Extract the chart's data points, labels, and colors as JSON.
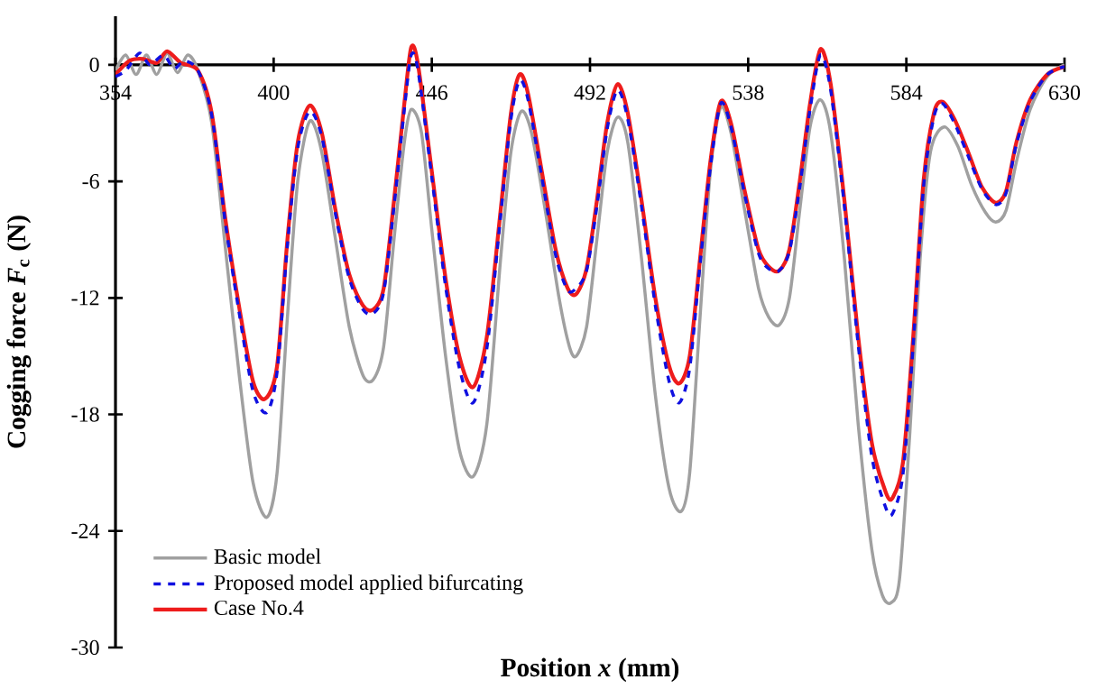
{
  "chart_data": {
    "type": "line",
    "xlabel": "Position *x* (mm)",
    "ylabel": "Cogging force *F*$_{c}$ (N)",
    "xlim": [
      354,
      630
    ],
    "xticks": [
      354,
      400,
      446,
      492,
      538,
      584,
      630
    ],
    "ylim": [
      -30,
      2.5
    ],
    "yticks": [
      -30,
      -24,
      -18,
      -12,
      -6,
      0
    ],
    "grid": false,
    "legend": "bottom left",
    "marker": "none",
    "series": [
      {
        "name": "Basic model",
        "color": "#a0a0a0",
        "line_style": "solid",
        "x": [
          354,
          357,
          360,
          363,
          366,
          369,
          372,
          375,
          378,
          382,
          386,
          390,
          394,
          398,
          401,
          404,
          407,
          410.5,
          414,
          418,
          422,
          426,
          429,
          432,
          435,
          438,
          440,
          443,
          446,
          450,
          454,
          458,
          462,
          466,
          469,
          472,
          475,
          479,
          483,
          486,
          488,
          491,
          494,
          497,
          500,
          503,
          507,
          511,
          515,
          518.5,
          521,
          524,
          527,
          530,
          533,
          537,
          541,
          544,
          547,
          550,
          553,
          556,
          559,
          562,
          566,
          570,
          574,
          577,
          579.5,
          582,
          585,
          588,
          591,
          595,
          599,
          603,
          607,
          610,
          613,
          616,
          620,
          625,
          630
        ],
        "values": [
          -0.3,
          0.5,
          -0.5,
          0.5,
          -0.5,
          0.6,
          -0.4,
          0.5,
          -0.3,
          -3,
          -9.5,
          -16,
          -21.5,
          -23.3,
          -21,
          -13,
          -6,
          -2.9,
          -4.5,
          -9,
          -13.5,
          -16,
          -16.2,
          -14.5,
          -9,
          -4,
          -2.3,
          -3.5,
          -8.5,
          -15,
          -19.8,
          -21.2,
          -18.5,
          -10,
          -4.5,
          -2.4,
          -3.5,
          -7.5,
          -12,
          -14.5,
          -15,
          -13.5,
          -9,
          -4.5,
          -2.7,
          -4,
          -10,
          -17,
          -21.8,
          -23,
          -21,
          -13,
          -5.5,
          -2.2,
          -3.5,
          -7.5,
          -11.5,
          -13,
          -13.4,
          -12,
          -7.5,
          -3.2,
          -1.8,
          -3.5,
          -10,
          -18.5,
          -25,
          -27.3,
          -27.7,
          -26.5,
          -19,
          -10,
          -4.5,
          -3.2,
          -4.2,
          -6.2,
          -7.6,
          -8.1,
          -7.5,
          -5,
          -2.3,
          -0.6,
          0
        ]
      },
      {
        "name": "Proposed model applied bifurcating",
        "color": "#1010e0",
        "line_style": "dashed",
        "x": [
          354,
          357,
          361,
          364,
          368,
          371,
          374,
          378,
          382,
          386,
          390,
          394,
          398,
          401,
          404,
          407,
          410.5,
          414,
          418,
          422,
          426,
          429,
          432,
          435,
          438,
          440,
          442,
          446,
          450,
          454,
          458,
          462,
          466,
          469,
          471.5,
          474,
          478,
          482,
          485.5,
          488,
          491,
          494,
          497,
          500,
          503,
          507,
          511,
          515,
          518,
          521,
          524,
          527,
          530,
          533,
          537,
          541,
          544,
          547,
          550,
          553,
          556,
          559,
          562,
          566,
          570,
          574,
          578,
          580,
          583,
          586,
          589,
          592,
          594.5,
          598,
          602,
          606,
          610,
          613,
          616,
          620,
          625,
          630
        ],
        "values": [
          -0.6,
          -0.3,
          0.6,
          0,
          0.5,
          -0.2,
          0.2,
          -0.3,
          -2.6,
          -8.2,
          -12.8,
          -16.8,
          -17.9,
          -15.8,
          -9.3,
          -4.3,
          -2.4,
          -3.7,
          -7.7,
          -11,
          -12.6,
          -12.8,
          -11.7,
          -7.3,
          -2.3,
          0.5,
          -0.3,
          -5.8,
          -11.4,
          -15.6,
          -17.4,
          -14.6,
          -7.8,
          -2.8,
          -0.8,
          -1.8,
          -5.8,
          -9.8,
          -11.6,
          -11.5,
          -10.6,
          -7.3,
          -3.3,
          -1.3,
          -2.8,
          -7.3,
          -12.4,
          -16.3,
          -17.4,
          -15.6,
          -10.3,
          -5.3,
          -2,
          -3.2,
          -6.7,
          -9.7,
          -10.5,
          -10.6,
          -9.6,
          -6.3,
          -2.3,
          0.5,
          -1.3,
          -7.3,
          -14.4,
          -20.2,
          -22.8,
          -23.1,
          -21.1,
          -14.4,
          -6.3,
          -2.7,
          -2,
          -3,
          -4.7,
          -6.4,
          -7.2,
          -6.6,
          -4.1,
          -1.9,
          -0.5,
          -0.1
        ]
      },
      {
        "name": "Case No.4",
        "color": "#ee1c1c",
        "line_style": "solid",
        "x": [
          354,
          358,
          362,
          366,
          369,
          373,
          378,
          382,
          386,
          390,
          394,
          397.5,
          401,
          404,
          407,
          410.5,
          414,
          418,
          422,
          426,
          429,
          432,
          435,
          438,
          440,
          442,
          446,
          450,
          454,
          458,
          462,
          466,
          469,
          471.5,
          474,
          478,
          482,
          485.5,
          488,
          491,
          494,
          497,
          500,
          503,
          507,
          511,
          515,
          518,
          521,
          524,
          527,
          530,
          533,
          537,
          541,
          544,
          547,
          550,
          553,
          556,
          559,
          562,
          566,
          570,
          574,
          578,
          580,
          583,
          586,
          589,
          592,
          594.5,
          598,
          602,
          606,
          610,
          613,
          616,
          620,
          625,
          630
        ],
        "values": [
          -0.5,
          0.2,
          0.3,
          0.1,
          0.7,
          0.1,
          -0.3,
          -2.5,
          -8,
          -12.5,
          -16.3,
          -17.2,
          -15.5,
          -9,
          -4,
          -2.1,
          -3.5,
          -7.5,
          -10.8,
          -12.4,
          -12.6,
          -11.5,
          -7,
          -2,
          0.9,
          0,
          -5.5,
          -11,
          -15,
          -16.6,
          -14,
          -7.5,
          -2.5,
          -0.5,
          -1.5,
          -5.5,
          -9.5,
          -11.5,
          -11.8,
          -10.5,
          -7,
          -3,
          -1,
          -2.5,
          -7,
          -12,
          -15.5,
          -16.4,
          -15,
          -10,
          -5,
          -1.9,
          -3,
          -6.5,
          -9.5,
          -10.4,
          -10.6,
          -9.5,
          -6,
          -2,
          0.8,
          -1,
          -7,
          -14,
          -19.5,
          -22,
          -22.3,
          -20.5,
          -14,
          -6,
          -2.5,
          -1.9,
          -2.8,
          -4.5,
          -6.3,
          -7.1,
          -6.5,
          -4,
          -1.8,
          -0.5,
          -0.1
        ]
      }
    ]
  }
}
